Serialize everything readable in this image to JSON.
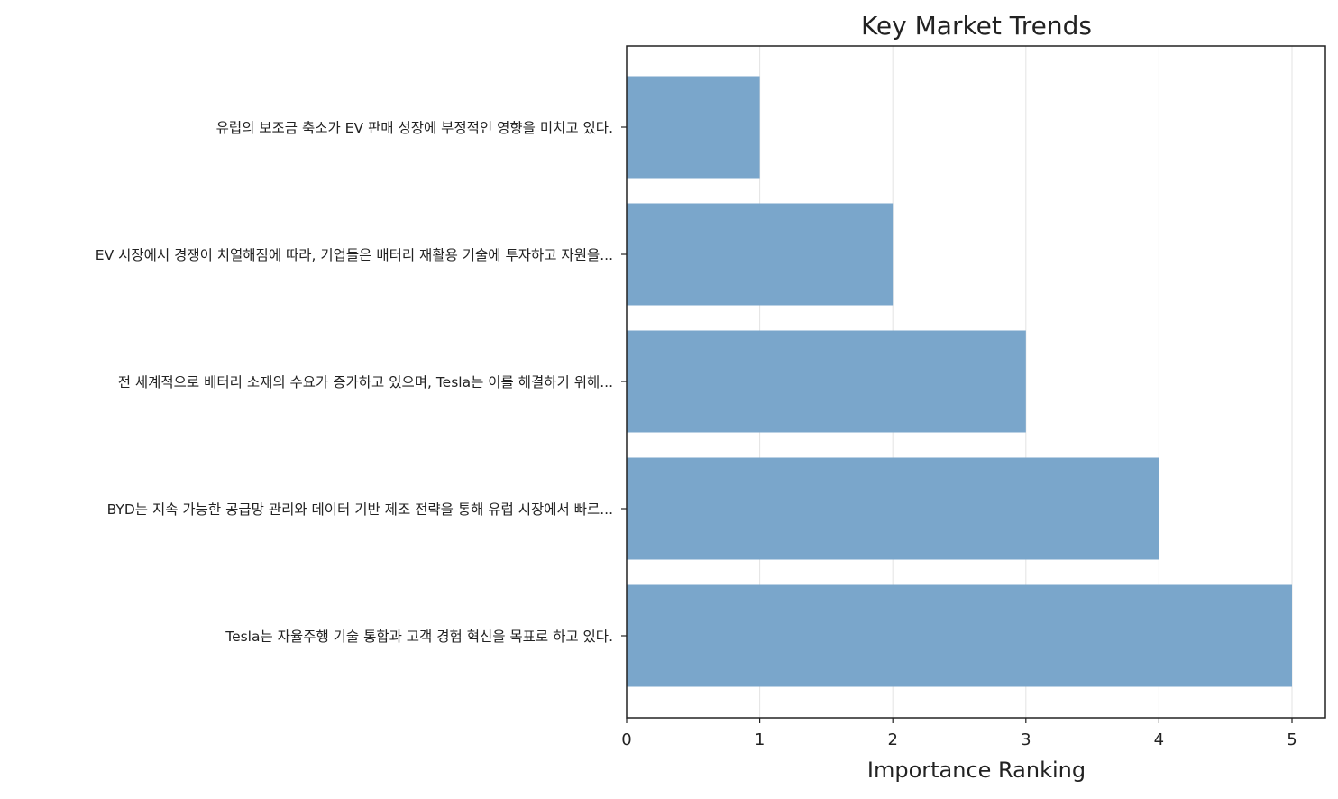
{
  "chart_data": {
    "type": "bar",
    "orientation": "horizontal",
    "title": "Key Market Trends",
    "xlabel": "Importance Ranking",
    "ylabel": "",
    "xlim": [
      0,
      5.25
    ],
    "x_ticks": [
      0,
      1,
      2,
      3,
      4,
      5
    ],
    "grid": "vertical",
    "legend": "none",
    "bar_color": "#7aa6cb",
    "categories": [
      "유럽의 보조금 축소가 EV 판매 성장에 부정적인 영향을 미치고 있다.",
      "EV 시장에서 경쟁이 치열해짐에 따라, 기업들은 배터리 재활용 기술에 투자하고 자원을...",
      "전 세계적으로 배터리 소재의 수요가 증가하고 있으며, Tesla는 이를 해결하기 위해...",
      "BYD는 지속 가능한 공급망 관리와 데이터 기반 제조 전략을 통해 유럽 시장에서 빠르...",
      "Tesla는 자율주행 기술 통합과 고객 경험 혁신을 목표로 하고 있다."
    ],
    "values": [
      1,
      2,
      3,
      4,
      5
    ]
  }
}
